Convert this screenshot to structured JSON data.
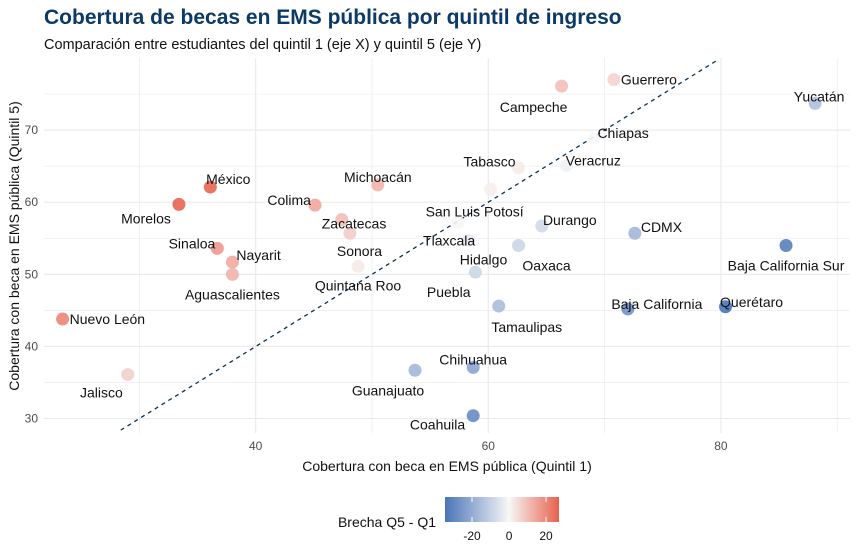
{
  "chart_data": {
    "type": "scatter",
    "title": "Cobertura de becas en EMS pública por quintil de ingreso",
    "subtitle": "Comparación entre estudiantes del quintil 1 (eje X) y quintil 5 (eje Y)",
    "xlabel": "Cobertura con beca en EMS pública (Quintil 1)",
    "ylabel": "Cobertura con beca en EMS pública (Quintil 5)",
    "xlim": [
      21.8,
      91.1
    ],
    "ylim": [
      28.0,
      80.0
    ],
    "x_ticks": [
      40,
      60,
      80
    ],
    "y_ticks": [
      30,
      40,
      50,
      60,
      70
    ],
    "grid": true,
    "reference_line": {
      "type": "identity",
      "style": "dashed",
      "color": "#0b2f52",
      "x_range": [
        28.4,
        79.6
      ]
    },
    "color_scale": {
      "title": "Brecha Q5 - Q1",
      "low_color": "#4a74b8",
      "mid_color": "#f7f7f7",
      "high_color": "#e8604c",
      "range": [
        -34.6,
        27.0
      ],
      "ticks": [
        -20,
        0,
        20
      ],
      "legend_position": "bottom"
    },
    "points": [
      {
        "label": "Nuevo León",
        "x": 23.4,
        "y": 43.8
      },
      {
        "label": "Jalisco",
        "x": 29.0,
        "y": 36.1
      },
      {
        "label": "Morelos",
        "x": 33.4,
        "y": 59.7
      },
      {
        "label": "México",
        "x": 36.1,
        "y": 62.1
      },
      {
        "label": "Sinaloa",
        "x": 36.7,
        "y": 53.6
      },
      {
        "label": "Nayarit",
        "x": 38.0,
        "y": 51.7
      },
      {
        "label": "Aguascalientes",
        "x": 38.0,
        "y": 50.0
      },
      {
        "label": "Colima",
        "x": 45.1,
        "y": 59.6
      },
      {
        "label": "Zacatecas",
        "x": 47.4,
        "y": 57.6
      },
      {
        "label": "Sonora",
        "x": 48.1,
        "y": 55.7
      },
      {
        "label": "Quintana Roo",
        "x": 48.8,
        "y": 51.1
      },
      {
        "label": "Michoacán",
        "x": 50.5,
        "y": 62.4
      },
      {
        "label": "Guanajuato",
        "x": 53.7,
        "y": 36.7
      },
      {
        "label": "Tlaxcala",
        "x": 57.4,
        "y": 57.2
      },
      {
        "label": "Hidalgo",
        "x": 58.3,
        "y": 54.7
      },
      {
        "label": "Chihuahua",
        "x": 58.7,
        "y": 37.1
      },
      {
        "label": "Coahuila",
        "x": 58.7,
        "y": 30.4
      },
      {
        "label": "Puebla",
        "x": 58.9,
        "y": 50.3
      },
      {
        "label": "San Luis Potosí",
        "x": 60.2,
        "y": 61.8
      },
      {
        "label": "Tamaulipas",
        "x": 60.9,
        "y": 45.6
      },
      {
        "label": "Tabasco",
        "x": 62.6,
        "y": 64.8
      },
      {
        "label": "Oaxaca",
        "x": 62.6,
        "y": 54.0
      },
      {
        "label": "Durango",
        "x": 64.6,
        "y": 56.7
      },
      {
        "label": "Campeche",
        "x": 66.3,
        "y": 76.1
      },
      {
        "label": "Veracruz",
        "x": 66.7,
        "y": 65.1
      },
      {
        "label": "Chiapas",
        "x": 69.1,
        "y": 68.9
      },
      {
        "label": "Guerrero",
        "x": 70.8,
        "y": 77.0
      },
      {
        "label": "Baja California",
        "x": 72.0,
        "y": 45.2
      },
      {
        "label": "CDMX",
        "x": 72.6,
        "y": 55.7
      },
      {
        "label": "Querétaro",
        "x": 80.4,
        "y": 45.5
      },
      {
        "label": "Baja California Sur",
        "x": 85.6,
        "y": 54.0
      },
      {
        "label": "Yucatán",
        "x": 88.1,
        "y": 73.7
      }
    ]
  }
}
